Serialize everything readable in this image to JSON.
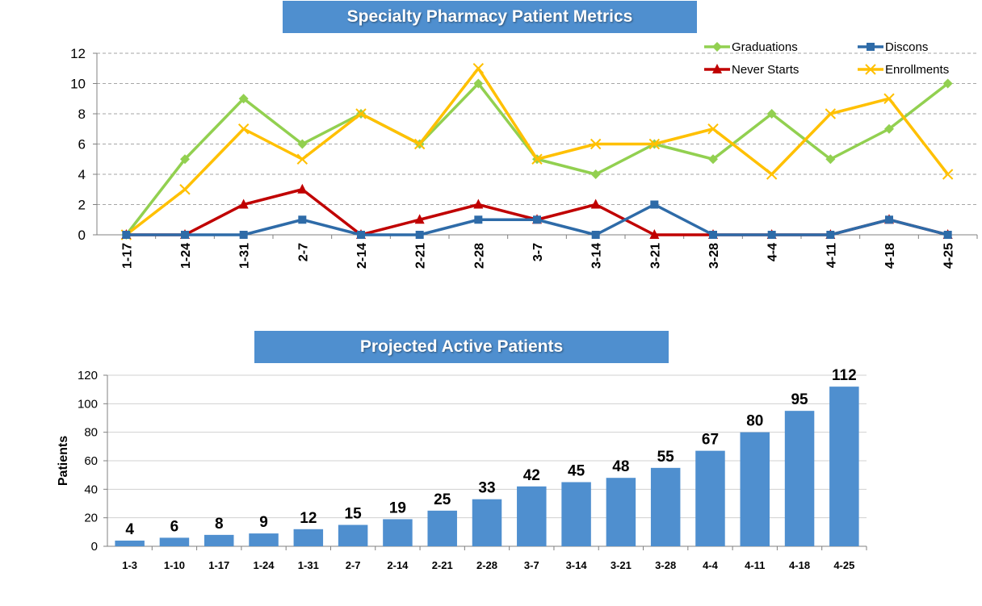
{
  "chart_data": [
    {
      "type": "line",
      "title": "Specialty Pharmacy  Patient Metrics",
      "categories": [
        "1-17",
        "1-24",
        "1-31",
        "2-7",
        "2-14",
        "2-21",
        "2-28",
        "3-7",
        "3-14",
        "3-21",
        "3-28",
        "4-4",
        "4-11",
        "4-18",
        "4-25"
      ],
      "series": [
        {
          "name": "Graduations",
          "color": "#92d050",
          "marker": "diamond",
          "values": [
            0,
            5,
            9,
            6,
            8,
            6,
            10,
            5,
            4,
            6,
            5,
            8,
            5,
            7,
            10
          ]
        },
        {
          "name": "Discons",
          "color": "#2e6ba8",
          "marker": "square",
          "values": [
            0,
            0,
            0,
            1,
            0,
            0,
            1,
            1,
            0,
            2,
            0,
            0,
            0,
            1,
            0
          ]
        },
        {
          "name": "Never Starts",
          "color": "#c00000",
          "marker": "triangle",
          "values": [
            0,
            0,
            2,
            3,
            0,
            1,
            2,
            1,
            2,
            0,
            0,
            0,
            0,
            1,
            0
          ]
        },
        {
          "name": "Enrollments",
          "color": "#ffc000",
          "marker": "x",
          "values": [
            0,
            3,
            7,
            5,
            8,
            6,
            11,
            5,
            6,
            6,
            7,
            4,
            8,
            9,
            4
          ]
        }
      ],
      "ylim": [
        0,
        12
      ],
      "yticks": [
        0,
        2,
        4,
        6,
        8,
        10,
        12
      ],
      "grid": true,
      "legend": "top-right"
    },
    {
      "type": "bar",
      "title": "Projected Active Patients",
      "categories": [
        "1-3",
        "1-10",
        "1-17",
        "1-24",
        "1-31",
        "2-7",
        "2-14",
        "2-21",
        "2-28",
        "3-7",
        "3-14",
        "3-21",
        "3-28",
        "4-4",
        "4-11",
        "4-18",
        "4-25"
      ],
      "values": [
        4,
        6,
        8,
        9,
        12,
        15,
        19,
        25,
        33,
        42,
        45,
        48,
        55,
        67,
        80,
        95,
        112
      ],
      "ylabel": "Patients",
      "xlabel": "",
      "ylim": [
        0,
        120
      ],
      "yticks": [
        0,
        20,
        40,
        60,
        80,
        100,
        120
      ],
      "bar_color": "#4f8fcf",
      "grid": true
    }
  ]
}
